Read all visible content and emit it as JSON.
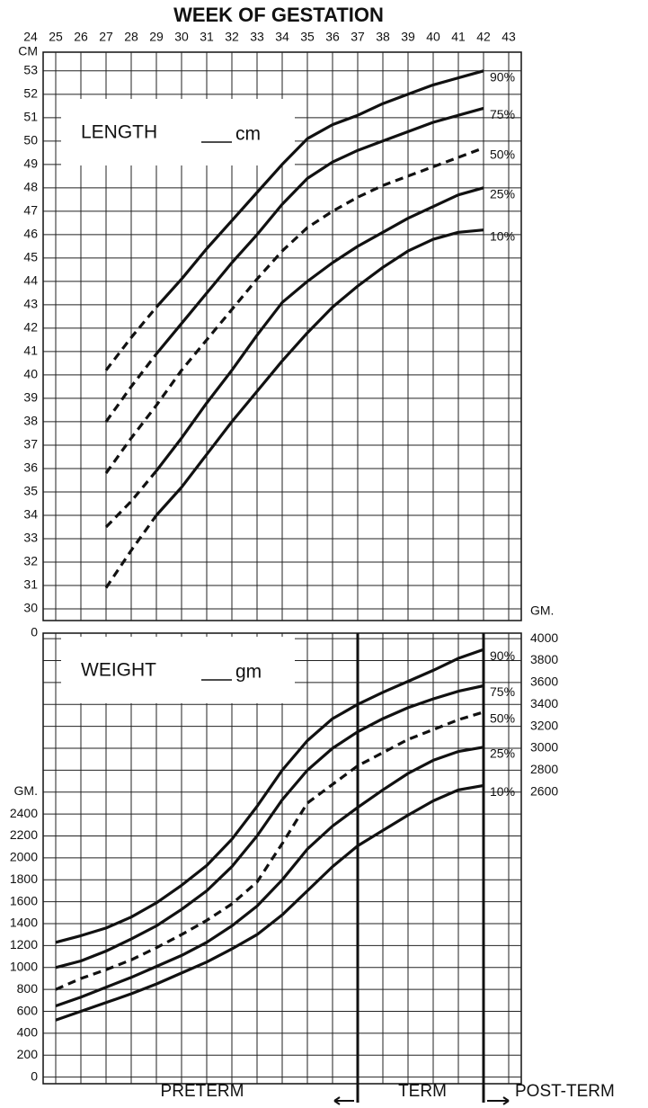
{
  "chart_data": [
    {
      "type": "line",
      "x_label": "WEEK OF GESTATION",
      "measure_label": "LENGTH",
      "unit_label": "cm",
      "y_label": "CM",
      "axis_break_label": "0",
      "xlim": [
        24.5,
        43.5
      ],
      "xticks": [
        24,
        25,
        26,
        27,
        28,
        29,
        30,
        31,
        32,
        33,
        34,
        35,
        36,
        37,
        38,
        39,
        40,
        41,
        42,
        43
      ],
      "ylim": [
        29.5,
        53.8
      ],
      "yticks": [
        30,
        31,
        32,
        33,
        34,
        35,
        36,
        37,
        38,
        39,
        40,
        41,
        42,
        43,
        44,
        45,
        46,
        47,
        48,
        49,
        50,
        51,
        52,
        53
      ],
      "grid": true,
      "x": [
        27,
        28,
        29,
        30,
        31,
        32,
        33,
        34,
        35,
        36,
        37,
        38,
        39,
        40,
        41,
        42
      ],
      "series": [
        {
          "name": "90%",
          "color": "#111111",
          "style": "solid",
          "dashed_to": 29,
          "values": [
            40.2,
            41.6,
            42.9,
            44.1,
            45.4,
            46.6,
            47.8,
            49.0,
            50.1,
            50.7,
            51.1,
            51.6,
            52.0,
            52.4,
            52.7,
            53.0
          ]
        },
        {
          "name": "75%",
          "color": "#111111",
          "style": "solid",
          "dashed_to": 29,
          "values": [
            38.0,
            39.5,
            40.9,
            42.2,
            43.5,
            44.8,
            46.0,
            47.3,
            48.4,
            49.1,
            49.6,
            50.0,
            50.4,
            50.8,
            51.1,
            51.4
          ]
        },
        {
          "name": "50%",
          "color": "#111111",
          "style": "dashed",
          "values": [
            35.8,
            37.3,
            38.7,
            40.2,
            41.5,
            42.8,
            44.1,
            45.3,
            46.3,
            47.0,
            47.6,
            48.1,
            48.5,
            48.9,
            49.3,
            49.7
          ]
        },
        {
          "name": "25%",
          "color": "#111111",
          "style": "solid",
          "dashed_to": 29,
          "values": [
            33.5,
            34.6,
            35.9,
            37.3,
            38.8,
            40.2,
            41.7,
            43.1,
            44.0,
            44.8,
            45.5,
            46.1,
            46.7,
            47.2,
            47.7,
            48.0
          ]
        },
        {
          "name": "10%",
          "color": "#111111",
          "style": "solid",
          "dashed_to": 29,
          "values": [
            30.9,
            32.5,
            34.0,
            35.2,
            36.6,
            38.0,
            39.3,
            40.6,
            41.8,
            42.9,
            43.8,
            44.6,
            45.3,
            45.8,
            46.1,
            46.2
          ]
        }
      ]
    },
    {
      "type": "line",
      "measure_label": "WEIGHT",
      "unit_label": "gm",
      "y_label": "GM.",
      "y2_label": "GM.",
      "xlim": [
        24.5,
        43.5
      ],
      "ylim": [
        -60,
        4050
      ],
      "yticks": [
        0,
        200,
        400,
        600,
        800,
        1000,
        1200,
        1400,
        1600,
        1800,
        2000,
        2200,
        2400
      ],
      "y2lim": [
        -60,
        4050
      ],
      "y2ticks": [
        2600,
        2800,
        3000,
        3200,
        3400,
        3600,
        3800,
        4000
      ],
      "grid": true,
      "x": [
        25,
        26,
        27,
        28,
        29,
        30,
        31,
        32,
        33,
        34,
        35,
        36,
        37,
        38,
        39,
        40,
        41,
        42
      ],
      "series": [
        {
          "name": "90%",
          "color": "#111111",
          "style": "solid",
          "values": [
            1230,
            1290,
            1360,
            1460,
            1590,
            1750,
            1930,
            2170,
            2470,
            2800,
            3070,
            3270,
            3400,
            3510,
            3610,
            3710,
            3820,
            3900
          ]
        },
        {
          "name": "75%",
          "color": "#111111",
          "style": "solid",
          "values": [
            1000,
            1060,
            1150,
            1260,
            1380,
            1530,
            1700,
            1920,
            2200,
            2530,
            2800,
            3000,
            3150,
            3270,
            3370,
            3450,
            3520,
            3570
          ]
        },
        {
          "name": "50%",
          "color": "#111111",
          "style": "dashed",
          "values": [
            800,
            900,
            980,
            1070,
            1180,
            1300,
            1430,
            1580,
            1780,
            2130,
            2500,
            2670,
            2840,
            2960,
            3080,
            3170,
            3260,
            3330
          ]
        },
        {
          "name": "25%",
          "color": "#111111",
          "style": "solid",
          "values": [
            650,
            730,
            820,
            910,
            1010,
            1110,
            1230,
            1380,
            1560,
            1800,
            2080,
            2290,
            2460,
            2620,
            2770,
            2890,
            2970,
            3010
          ]
        },
        {
          "name": "10%",
          "color": "#111111",
          "style": "solid",
          "values": [
            520,
            600,
            680,
            760,
            850,
            950,
            1050,
            1170,
            1300,
            1480,
            1700,
            1920,
            2110,
            2250,
            2390,
            2520,
            2620,
            2660
          ]
        }
      ],
      "boundaries": [
        37,
        42
      ],
      "annotations": [
        "PRETERM",
        "TERM",
        "POST-TERM"
      ]
    }
  ]
}
